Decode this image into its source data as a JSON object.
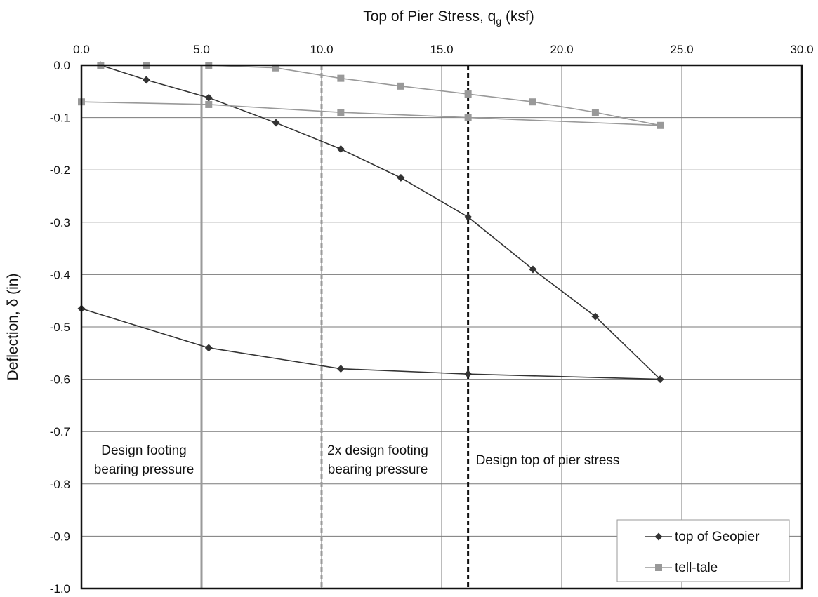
{
  "chart_data": {
    "type": "line",
    "xlabel": "Top of Pier Stress, q",
    "xlabel_sub": "g",
    "xlabel_unit": " (ksf)",
    "ylabel": "Deflection, δ (in)",
    "xlim": [
      0,
      30
    ],
    "ylim": [
      -1.0,
      0.0
    ],
    "x_axis_position": "top",
    "grid": true,
    "x_ticks": [
      0,
      5,
      10,
      15,
      20,
      25,
      30
    ],
    "x_tick_labels": [
      "0.0",
      "5.0",
      "10.0",
      "15.0",
      "20.0",
      "25.0",
      "30.0"
    ],
    "y_ticks": [
      0,
      -0.1,
      -0.2,
      -0.3,
      -0.4,
      -0.5,
      -0.6,
      -0.7,
      -0.8,
      -0.9,
      -1.0
    ],
    "y_tick_labels": [
      "0.0",
      "-0.1",
      "-0.2",
      "-0.3",
      "-0.4",
      "-0.5",
      "-0.6",
      "-0.7",
      "-0.8",
      "-0.9",
      "-1.0"
    ],
    "legend_position": "bottom-right",
    "series": [
      {
        "name": "top of Geopier",
        "color": "#333333",
        "marker": "diamond",
        "x": [
          0.8,
          2.7,
          5.3,
          8.1,
          10.8,
          13.3,
          16.1,
          18.8,
          21.4,
          24.1,
          16.1,
          10.8,
          5.3,
          0.0
        ],
        "y": [
          0.0,
          -0.028,
          -0.062,
          -0.11,
          -0.16,
          -0.215,
          -0.29,
          -0.39,
          -0.48,
          -0.6,
          -0.59,
          -0.58,
          -0.54,
          -0.465
        ]
      },
      {
        "name": "tell-tale",
        "color": "#999999",
        "marker": "square",
        "x": [
          0.8,
          2.7,
          5.3,
          8.1,
          10.8,
          13.3,
          16.1,
          18.8,
          21.4,
          24.1,
          16.1,
          10.8,
          5.3,
          0.0
        ],
        "y": [
          0.0,
          0.0,
          0.0,
          -0.005,
          -0.025,
          -0.04,
          -0.055,
          -0.07,
          -0.09,
          -0.115,
          -0.1,
          -0.09,
          -0.075,
          -0.07
        ]
      }
    ],
    "reference_lines": [
      {
        "x": 5.0,
        "style": "solid",
        "color": "#9a9a9a",
        "label_lines": [
          "Design footing",
          "bearing pressure"
        ]
      },
      {
        "x": 10.0,
        "style": "dashed",
        "color": "#9a9a9a",
        "label_lines": [
          "2x design footing",
          "bearing pressure"
        ]
      },
      {
        "x": 16.1,
        "style": "dashed",
        "color": "#111111",
        "label_lines": [
          "Design top of pier stress"
        ]
      }
    ]
  }
}
